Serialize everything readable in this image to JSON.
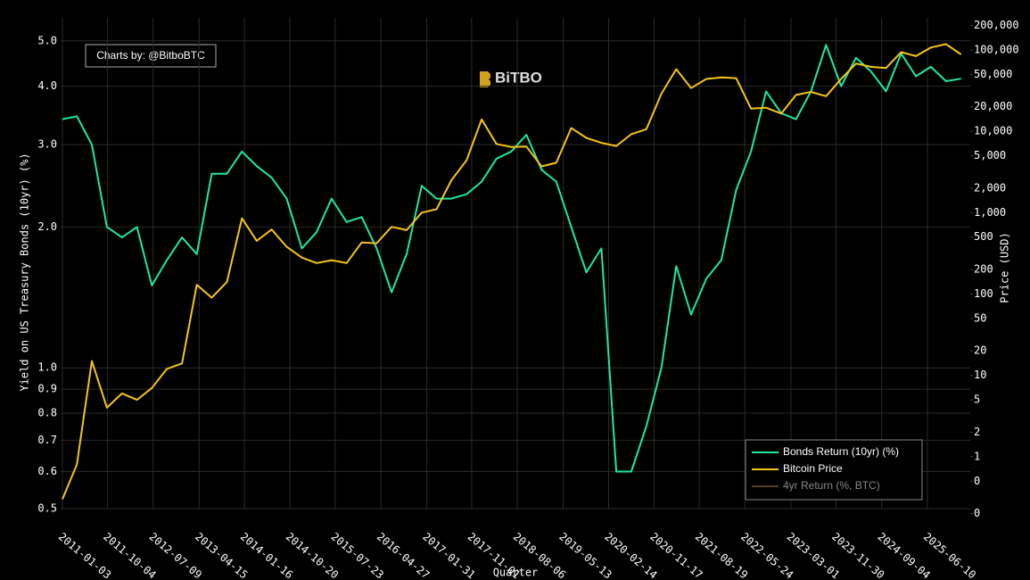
{
  "chart_data": {
    "type": "line",
    "annotation": "Charts by: @BitboBTC",
    "watermark": "BiTBO",
    "x_label": "Quarter",
    "y_label": "Yield on US Treasury Bonds (10yr) (%)",
    "y2_label": "Price (USD)",
    "log_y": true,
    "log_y2": true,
    "grid": true,
    "legend": "bottom-right",
    "xlim": [
      "2010-12-23",
      "2026-02-26"
    ],
    "xticks": [
      "2011-01-03",
      "2011-10-04",
      "2012-07-09",
      "2013-04-15",
      "2014-01-16",
      "2014-10-20",
      "2015-07-23",
      "2016-04-27",
      "2017-01-31",
      "2017-11-01",
      "2018-08-06",
      "2019-05-13",
      "2020-02-14",
      "2020-11-17",
      "2021-08-19",
      "2022-05-24",
      "2023-03-01",
      "2023-11-30",
      "2024-09-04",
      "2025-06-10"
    ],
    "ylim": [
      0.5,
      5.6
    ],
    "yticks": [
      0.5,
      0.6,
      0.7,
      0.8,
      0.9,
      {
        "value": 1,
        "label": "1.0"
      },
      {
        "value": 2,
        "label": "2.0"
      },
      {
        "value": 3,
        "label": "3.0"
      },
      {
        "value": 4,
        "label": "4.0"
      },
      {
        "value": 5,
        "label": "5.0"
      }
    ],
    "y2lim": [
      0.23,
      248000
    ],
    "y2ticks": [
      {
        "value": 0.2,
        "label": "0"
      },
      {
        "value": 0.5,
        "label": "0"
      },
      1,
      2,
      5,
      10,
      20,
      50,
      100,
      200,
      500,
      {
        "value": 1000,
        "label": "1,000"
      },
      {
        "value": 2000,
        "label": "2,000"
      },
      {
        "value": 5000,
        "label": "5,000"
      },
      {
        "value": 10000,
        "label": "10,000"
      },
      {
        "value": 20000,
        "label": "20,000"
      },
      {
        "value": 50000,
        "label": "50,000"
      },
      {
        "value": 100000,
        "label": "100,000"
      },
      {
        "value": 200000,
        "label": "200,000"
      }
    ],
    "x": [
      "2011-01-03",
      "2011-04-01",
      "2011-07-01",
      "2011-10-01",
      "2012-01-01",
      "2012-04-01",
      "2012-07-01",
      "2012-10-01",
      "2013-01-01",
      "2013-04-01",
      "2013-07-01",
      "2013-10-01",
      "2014-01-01",
      "2014-04-01",
      "2014-07-01",
      "2014-10-01",
      "2015-01-01",
      "2015-04-01",
      "2015-07-01",
      "2015-10-01",
      "2016-01-01",
      "2016-04-01",
      "2016-07-01",
      "2016-10-01",
      "2017-01-01",
      "2017-04-01",
      "2017-07-01",
      "2017-10-01",
      "2018-01-01",
      "2018-04-01",
      "2018-07-01",
      "2018-10-01",
      "2019-01-01",
      "2019-04-01",
      "2019-07-01",
      "2019-10-01",
      "2020-01-01",
      "2020-04-01",
      "2020-07-01",
      "2020-10-01",
      "2021-01-01",
      "2021-04-01",
      "2021-07-01",
      "2021-10-01",
      "2022-01-01",
      "2022-04-01",
      "2022-07-01",
      "2022-10-01",
      "2023-01-01",
      "2023-04-01",
      "2023-07-01",
      "2023-10-01",
      "2024-01-01",
      "2024-04-01",
      "2024-07-01",
      "2024-10-01",
      "2025-01-01",
      "2025-04-01",
      "2025-07-01",
      "2025-10-01",
      "2026-01-01"
    ],
    "series": [
      {
        "name": "Bonds Return (10yr) (%)",
        "color": "#1de9a0",
        "values": [
          3.4,
          3.45,
          3.0,
          2.0,
          1.9,
          2.0,
          1.5,
          1.7,
          1.9,
          1.75,
          2.6,
          2.6,
          2.9,
          2.7,
          2.55,
          2.3,
          1.8,
          1.95,
          2.3,
          2.05,
          2.1,
          1.8,
          1.45,
          1.75,
          2.45,
          2.3,
          2.3,
          2.35,
          2.5,
          2.8,
          2.9,
          3.15,
          2.65,
          2.5,
          2.0,
          1.6,
          1.8,
          0.6,
          0.6,
          0.75,
          1.0,
          1.65,
          1.3,
          1.55,
          1.7,
          2.4,
          2.9,
          3.9,
          3.5,
          3.4,
          3.9,
          4.9,
          4.0,
          4.6,
          4.3,
          3.9,
          4.7,
          4.2,
          4.4,
          4.1,
          4.15
        ]
      },
      {
        "name": "Bitcoin Price",
        "color": "#f5c518",
        "axis": "y2",
        "values": [
          0.3,
          0.8,
          15,
          4,
          6,
          5,
          7,
          12,
          14,
          130,
          90,
          140,
          850,
          450,
          620,
          380,
          280,
          240,
          260,
          240,
          430,
          420,
          670,
          610,
          1000,
          1100,
          2500,
          4400,
          14000,
          7000,
          6400,
          6500,
          3700,
          4100,
          11000,
          8300,
          7200,
          6600,
          9200,
          10600,
          29000,
          58000,
          34000,
          44000,
          46000,
          45000,
          19000,
          19500,
          16500,
          28000,
          30500,
          27000,
          44000,
          68000,
          62000,
          60000,
          94000,
          84000,
          107000,
          118000,
          88000
        ]
      },
      {
        "name": "4yr Return (%, BTC)",
        "color": "#8b6b3c",
        "visible": false
      }
    ]
  }
}
